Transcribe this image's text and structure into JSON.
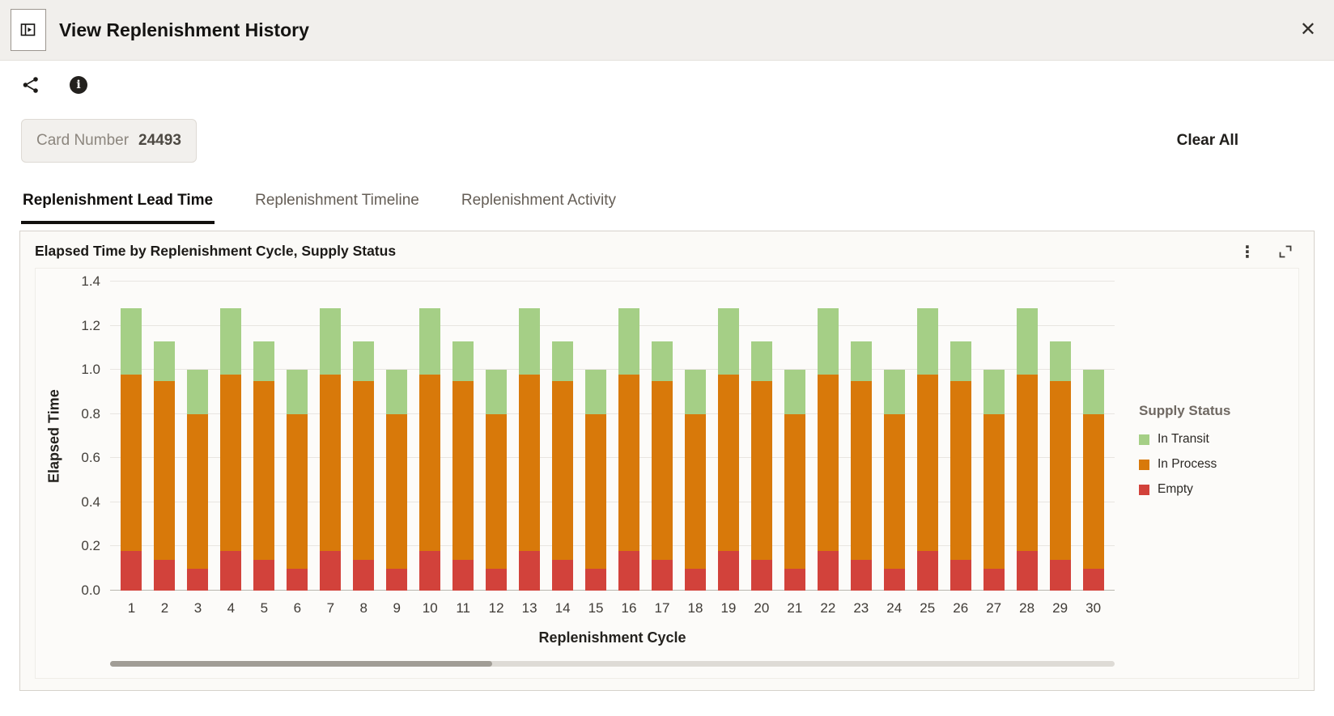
{
  "header": {
    "title": "View Replenishment History",
    "close_glyph": "✕"
  },
  "toolbar": {
    "icons": [
      "share-icon",
      "info-icon"
    ],
    "info_glyph": "i"
  },
  "filters": {
    "card_label": "Card Number",
    "card_value": "24493",
    "clear_all_label": "Clear All"
  },
  "tabs": [
    {
      "label": "Replenishment Lead Time",
      "active": true
    },
    {
      "label": "Replenishment Timeline",
      "active": false
    },
    {
      "label": "Replenishment Activity",
      "active": false
    }
  ],
  "panel": {
    "title": "Elapsed Time by Replenishment Cycle, Supply Status",
    "menu_glyph": "⋮",
    "icons": [
      "kebab-menu-icon",
      "expand-icon"
    ]
  },
  "chart_data": {
    "type": "bar",
    "stacked": true,
    "title": "Elapsed Time by Replenishment Cycle, Supply Status",
    "xlabel": "Replenishment Cycle",
    "ylabel": "Elapsed Time",
    "ylim": [
      0,
      1.4
    ],
    "yticks": [
      0,
      0.2,
      0.4,
      0.6,
      0.8,
      1.0,
      1.2,
      1.4
    ],
    "grid": "horizontal",
    "legend_title": "Supply Status",
    "legend_position": "right",
    "legend_order": [
      "In Transit",
      "In Process",
      "Empty"
    ],
    "categories": [
      "1",
      "2",
      "3",
      "4",
      "5",
      "6",
      "7",
      "8",
      "9",
      "10",
      "11",
      "12",
      "13",
      "14",
      "15",
      "16",
      "17",
      "18",
      "19",
      "20",
      "21",
      "22",
      "23",
      "24",
      "25",
      "26",
      "27",
      "28",
      "29",
      "30"
    ],
    "series": [
      {
        "name": "Empty",
        "color": "#d2423b",
        "values": [
          0.18,
          0.14,
          0.1,
          0.18,
          0.14,
          0.1,
          0.18,
          0.14,
          0.1,
          0.18,
          0.14,
          0.1,
          0.18,
          0.14,
          0.1,
          0.18,
          0.14,
          0.1,
          0.18,
          0.14,
          0.1,
          0.18,
          0.14,
          0.1,
          0.18,
          0.14,
          0.1,
          0.18,
          0.14,
          0.1
        ]
      },
      {
        "name": "In Process",
        "color": "#d8790a",
        "values": [
          0.8,
          0.81,
          0.7,
          0.8,
          0.81,
          0.7,
          0.8,
          0.81,
          0.7,
          0.8,
          0.81,
          0.7,
          0.8,
          0.81,
          0.7,
          0.8,
          0.81,
          0.7,
          0.8,
          0.81,
          0.7,
          0.8,
          0.81,
          0.7,
          0.8,
          0.81,
          0.7,
          0.8,
          0.81,
          0.7
        ]
      },
      {
        "name": "In Transit",
        "color": "#a5cf86",
        "values": [
          0.3,
          0.18,
          0.2,
          0.3,
          0.18,
          0.2,
          0.3,
          0.18,
          0.2,
          0.3,
          0.18,
          0.2,
          0.3,
          0.18,
          0.2,
          0.3,
          0.18,
          0.2,
          0.3,
          0.18,
          0.2,
          0.3,
          0.18,
          0.2,
          0.3,
          0.18,
          0.2,
          0.3,
          0.18,
          0.2
        ]
      }
    ],
    "scrollbar": {
      "thumb_start": 0,
      "thumb_fraction": 0.38
    }
  }
}
